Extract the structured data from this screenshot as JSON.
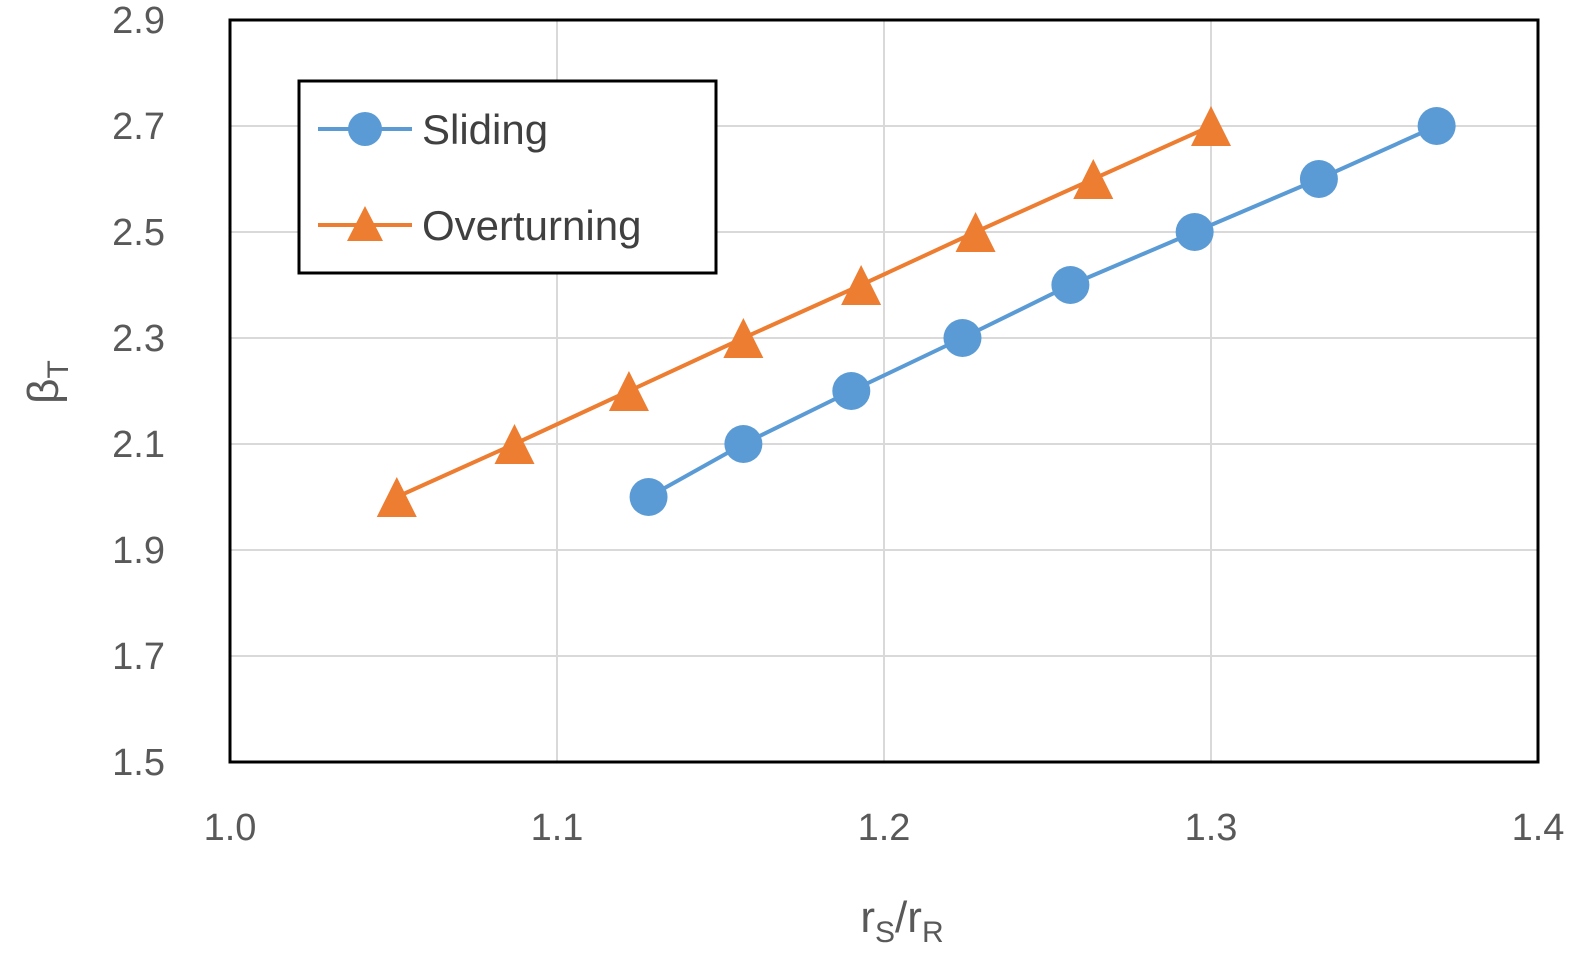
{
  "chart_data": {
    "type": "line",
    "title": "",
    "xlabel": {
      "main": "r",
      "sub1": "S",
      "sep": "/r",
      "sub2": "R"
    },
    "ylabel": {
      "main": "β",
      "sub": "T"
    },
    "xlim": [
      1.0,
      1.4
    ],
    "ylim": [
      1.5,
      2.9
    ],
    "x_ticks": [
      "1.0",
      "1.1",
      "1.2",
      "1.3",
      "1.4"
    ],
    "y_ticks": [
      "1.5",
      "1.7",
      "1.9",
      "2.1",
      "2.3",
      "2.5",
      "2.7",
      "2.9"
    ],
    "grid": true,
    "legend_position": "top-left",
    "series": [
      {
        "name": "Sliding",
        "marker": "circle",
        "color": "#5B9BD5",
        "x": [
          1.128,
          1.157,
          1.19,
          1.224,
          1.257,
          1.295,
          1.333,
          1.369
        ],
        "y": [
          2.0,
          2.1,
          2.2,
          2.3,
          2.4,
          2.5,
          2.6,
          2.7
        ]
      },
      {
        "name": "Overturning",
        "marker": "triangle",
        "color": "#ED7D31",
        "x": [
          1.051,
          1.087,
          1.122,
          1.157,
          1.193,
          1.228,
          1.264,
          1.3
        ],
        "y": [
          2.0,
          2.1,
          2.2,
          2.3,
          2.4,
          2.5,
          2.6,
          2.7
        ]
      }
    ]
  }
}
